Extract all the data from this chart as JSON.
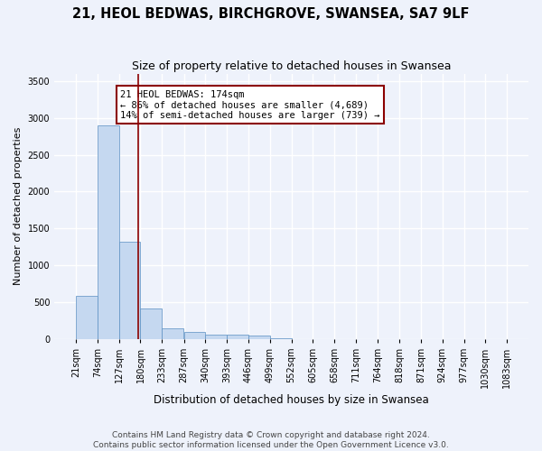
{
  "title1": "21, HEOL BEDWAS, BIRCHGROVE, SWANSEA, SA7 9LF",
  "title2": "Size of property relative to detached houses in Swansea",
  "xlabel": "Distribution of detached houses by size in Swansea",
  "ylabel": "Number of detached properties",
  "bin_edges": [
    21,
    74,
    127,
    180,
    233,
    287,
    340,
    393,
    446,
    499,
    552,
    605,
    658,
    711,
    764,
    818,
    871,
    924,
    977,
    1030,
    1083
  ],
  "bin_counts": [
    580,
    2900,
    1320,
    415,
    150,
    90,
    60,
    55,
    50,
    5,
    3,
    2,
    1,
    1,
    1,
    1,
    0,
    0,
    0,
    0
  ],
  "bar_color": "#c5d8f0",
  "bar_edge_color": "#5a8fc2",
  "vline_x": 174,
  "vline_color": "#8b0000",
  "annotation_text": "21 HEOL BEDWAS: 174sqm\n← 86% of detached houses are smaller (4,689)\n14% of semi-detached houses are larger (739) →",
  "annotation_box_color": "white",
  "annotation_box_edge_color": "#8b0000",
  "ylim": [
    0,
    3600
  ],
  "yticks": [
    0,
    500,
    1000,
    1500,
    2000,
    2500,
    3000,
    3500
  ],
  "bg_color": "#eef2fb",
  "grid_color": "white",
  "footer_text": "Contains HM Land Registry data © Crown copyright and database right 2024.\nContains public sector information licensed under the Open Government Licence v3.0.",
  "title1_fontsize": 10.5,
  "title2_fontsize": 9,
  "xlabel_fontsize": 8.5,
  "ylabel_fontsize": 8,
  "tick_fontsize": 7,
  "annotation_fontsize": 7.5,
  "footer_fontsize": 6.5
}
